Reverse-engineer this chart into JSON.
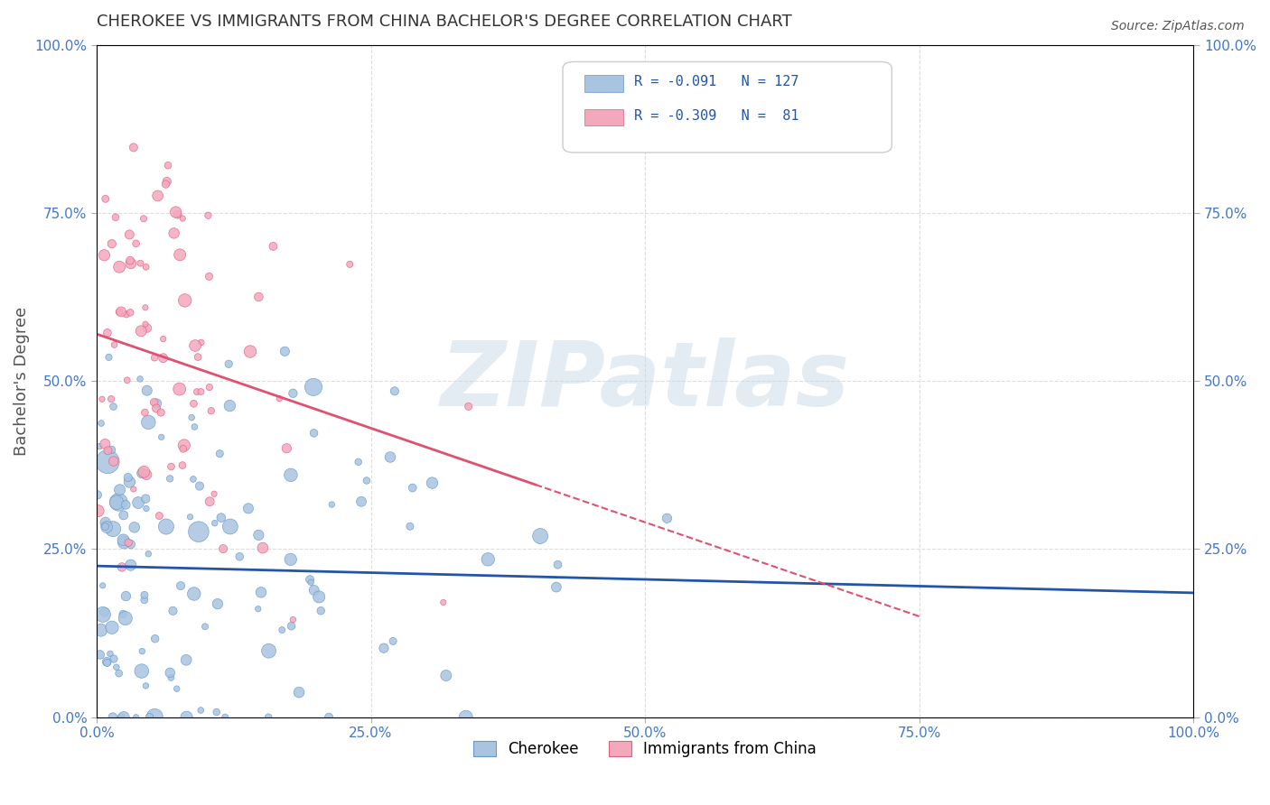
{
  "title": "CHEROKEE VS IMMIGRANTS FROM CHINA BACHELOR'S DEGREE CORRELATION CHART",
  "source": "Source: ZipAtlas.com",
  "xlabel": "",
  "ylabel": "Bachelor's Degree",
  "xlim": [
    0,
    1
  ],
  "ylim": [
    0,
    1
  ],
  "xticks": [
    0.0,
    0.25,
    0.5,
    0.75,
    1.0
  ],
  "yticks": [
    0.0,
    0.25,
    0.5,
    0.75,
    1.0
  ],
  "xtick_labels": [
    "0.0%",
    "25.0%",
    "50.0%",
    "75.0%",
    "100.0%"
  ],
  "ytick_labels": [
    "0.0%",
    "25.0%",
    "50.0%",
    "75.0%",
    "100.0%"
  ],
  "cherokee_color": "#a8c4e0",
  "china_color": "#f4a8bc",
  "cherokee_edge": "#6699cc",
  "china_edge": "#e06080",
  "regression_blue": "#2255aa",
  "regression_pink": "#e05070",
  "legend_R1": "R = -0.091",
  "legend_N1": "N = 127",
  "legend_R2": "R = -0.309",
  "legend_N2": " 81",
  "watermark": "ZIPatlas",
  "watermark_color": "#c8d8e8",
  "background": "#ffffff",
  "grid_color": "#dddddd",
  "cherokee_seed": 42,
  "china_seed": 123,
  "N_cherokee": 127,
  "N_china": 81,
  "R_cherokee": -0.091,
  "R_china": -0.309
}
